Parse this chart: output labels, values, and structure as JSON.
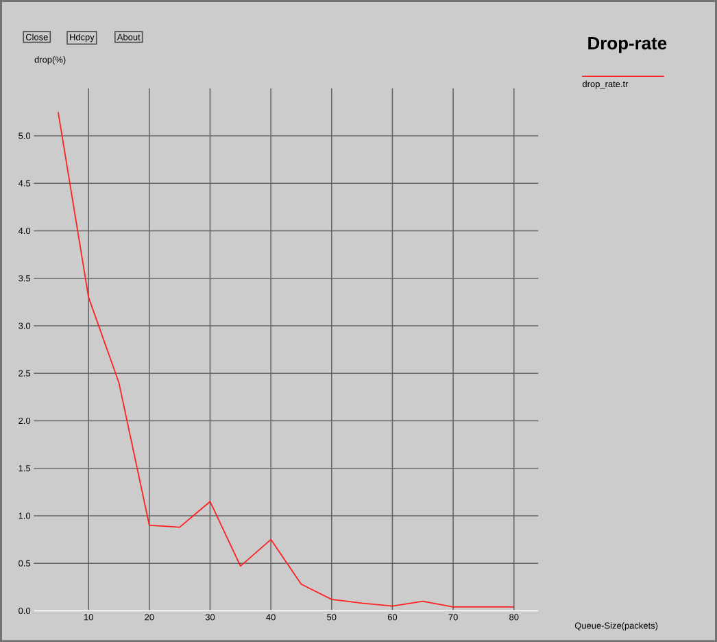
{
  "chart_data": {
    "type": "line",
    "title": "Drop-rate",
    "xlabel": "Queue-Size(packets)",
    "ylabel": "drop(%)",
    "annotations": [
      "Close",
      "Hdcpy",
      "About"
    ],
    "x": [
      5,
      10,
      15,
      20,
      25,
      30,
      35,
      40,
      45,
      50,
      55,
      60,
      65,
      70,
      75,
      80
    ],
    "series": [
      {
        "name": "drop_rate.tr",
        "color": "#ff2020",
        "values": [
          5.25,
          3.3,
          2.4,
          0.9,
          0.88,
          1.15,
          0.47,
          0.75,
          0.28,
          0.12,
          0.08,
          0.05,
          0.1,
          0.04,
          0.04,
          0.04
        ]
      }
    ],
    "xlim": [
      1,
      84
    ],
    "ylim": [
      0,
      5.5
    ],
    "xticks": [
      10,
      20,
      30,
      40,
      50,
      60,
      70,
      80
    ],
    "yticks": [
      {
        "value": 0,
        "label": "0.0"
      },
      {
        "value": 0.5,
        "label": "0.5"
      },
      {
        "value": 1,
        "label": "1.0"
      },
      {
        "value": 1.5,
        "label": "1.5"
      },
      {
        "value": 2,
        "label": "2.0"
      },
      {
        "value": 2.5,
        "label": "2.5"
      },
      {
        "value": 3,
        "label": "3.0"
      },
      {
        "value": 3.5,
        "label": "3.5"
      },
      {
        "value": 4,
        "label": "4.0"
      },
      {
        "value": 4.5,
        "label": "4.5"
      },
      {
        "value": 5,
        "label": "5.0"
      }
    ],
    "grid": true,
    "legend": "top right",
    "marker": "none",
    "line_style": "solid"
  }
}
